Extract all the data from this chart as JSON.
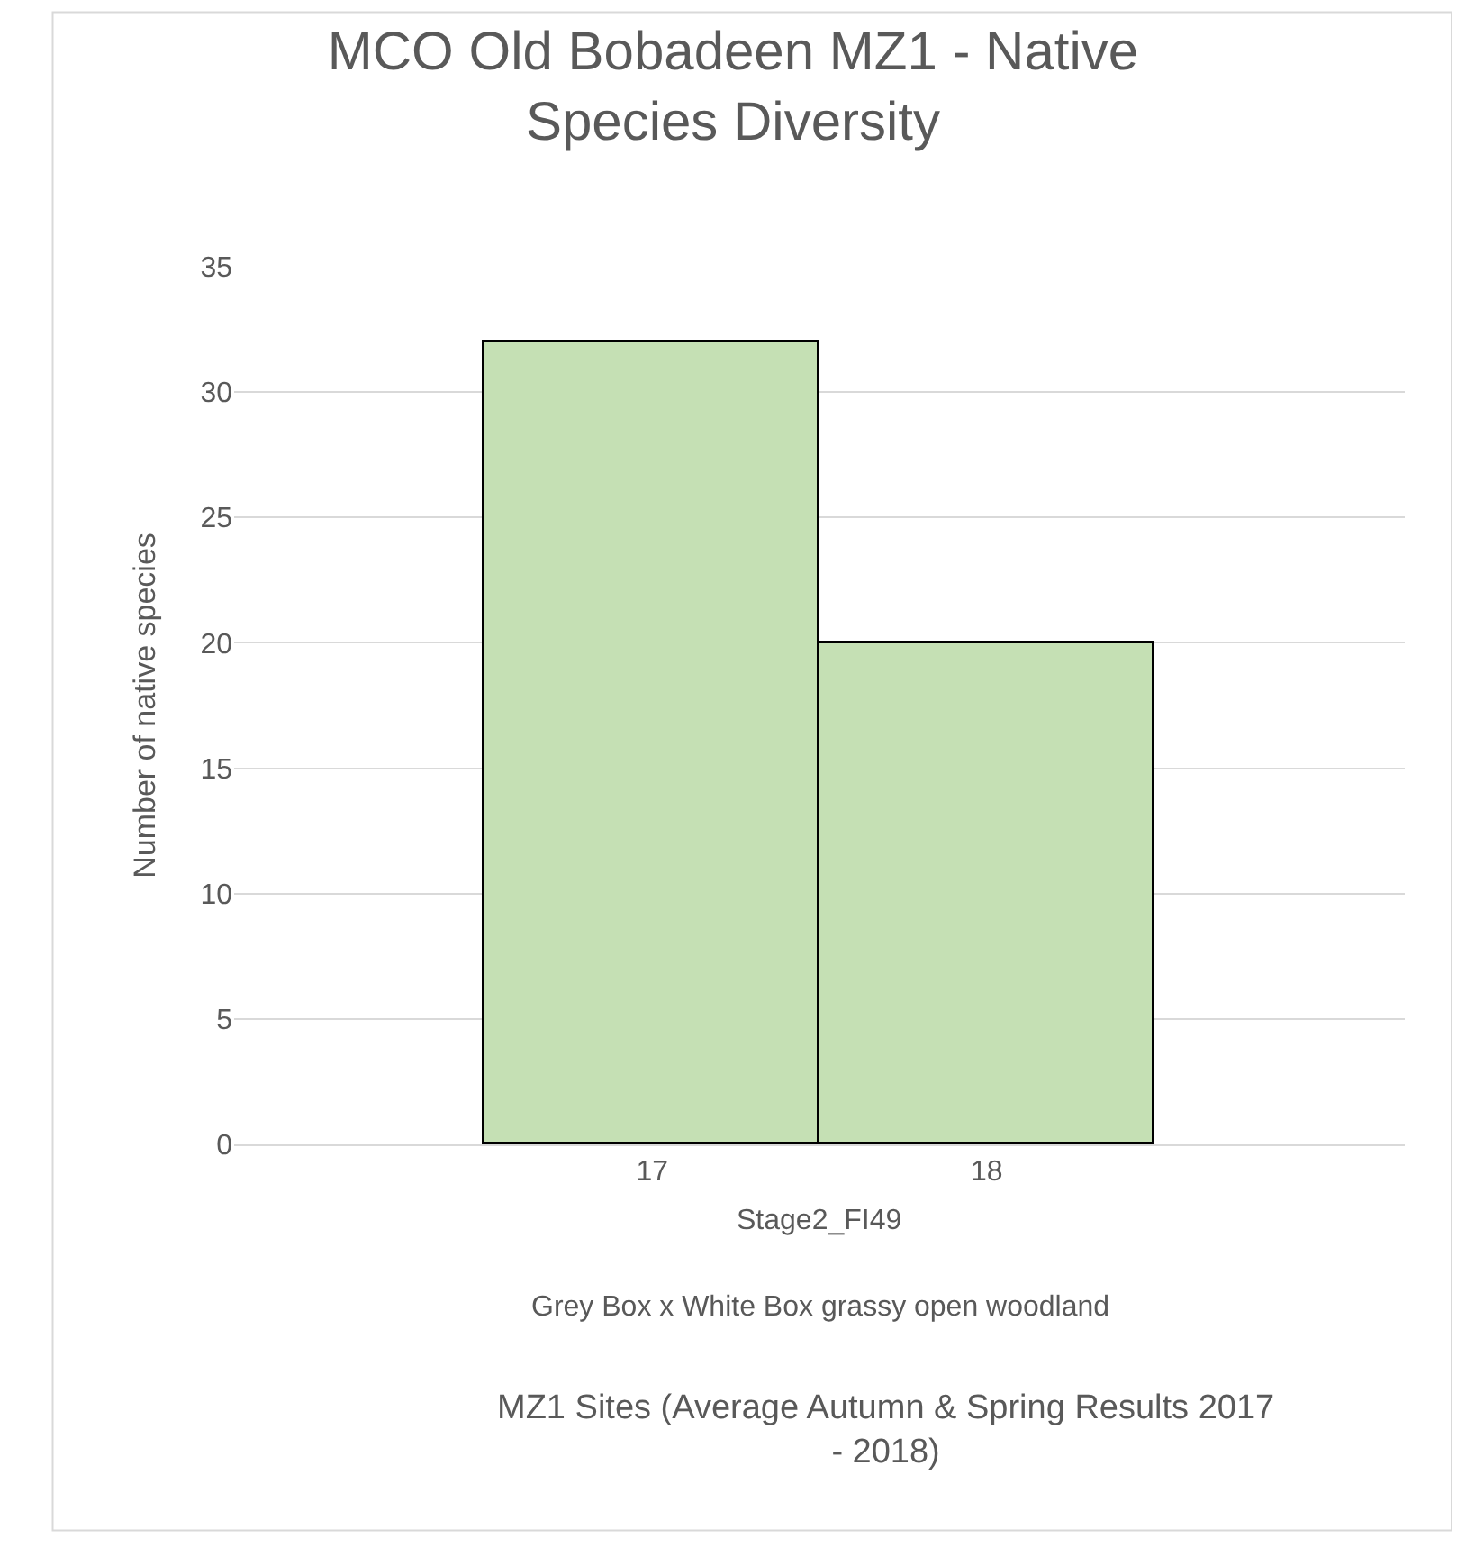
{
  "chart_data": {
    "type": "bar",
    "title": "MCO Old Bobadeen MZ1 - Native Species Diversity",
    "categories": [
      "17",
      "18"
    ],
    "values": [
      32,
      20
    ],
    "color": "#c5e0b4",
    "ylabel": "Number of native species",
    "annotations": [
      "Stage2_FI49",
      "Grey Box x White Box grassy open woodland",
      "MZ1 Sites (Average Autumn & Spring Results 2017 - 2018)"
    ],
    "ylim": [
      0,
      35
    ],
    "yticks": [
      0,
      5,
      10,
      15,
      20,
      25,
      30,
      35
    ],
    "grid": "y"
  }
}
